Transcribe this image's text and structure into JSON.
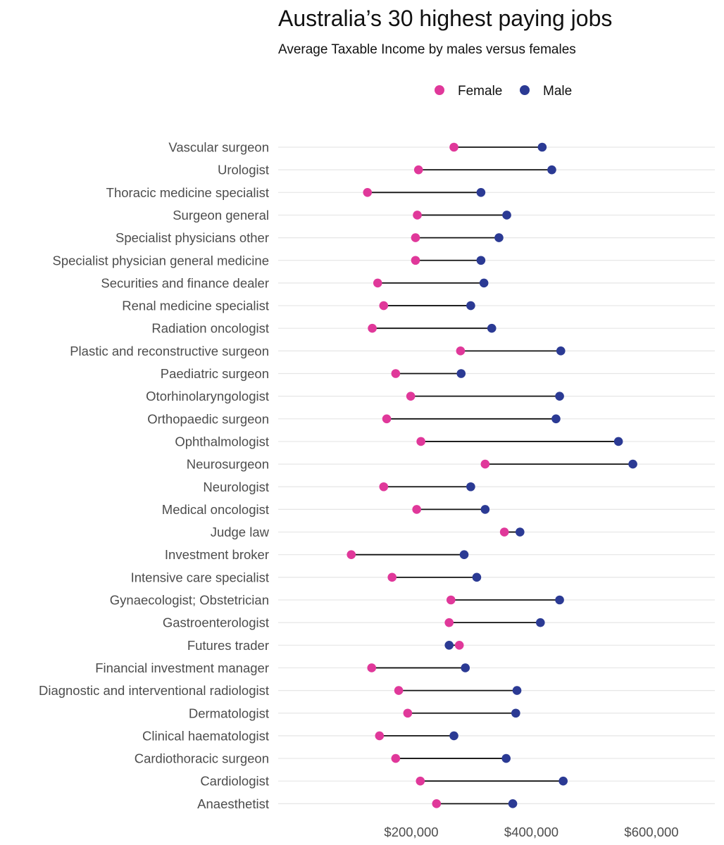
{
  "header": {
    "title": "Australia’s 30 highest paying jobs",
    "subtitle": "Average Taxable Income by males versus females"
  },
  "chart_data": {
    "type": "dumbbell",
    "title": "Australia’s 30 highest paying jobs",
    "subtitle": "Average Taxable Income by males versus females",
    "xlabel": "",
    "ylabel": "",
    "x_ticks": [
      200000,
      400000,
      600000
    ],
    "x_tick_labels": [
      "$200,000",
      "$400,000",
      "$600,000"
    ],
    "grid": "horizontal",
    "legend": {
      "position": "top",
      "entries": [
        "Female",
        "Male"
      ]
    },
    "colors": {
      "Female": "#e0389a",
      "Male": "#2b3a94",
      "segment": "#111111",
      "grid": "#e6e6e6"
    },
    "categories": [
      "Vascular surgeon",
      "Urologist",
      "Thoracic medicine specialist",
      "Surgeon  general",
      "Specialist physicians  other",
      "Specialist physician  general medicine",
      "Securities and finance dealer",
      "Renal medicine specialist",
      "Radiation oncologist",
      "Plastic and reconstructive surgeon",
      "Paediatric surgeon",
      "Otorhinolaryngologist",
      "Orthopaedic surgeon",
      "Ophthalmologist",
      "Neurosurgeon",
      "Neurologist",
      "Medical oncologist",
      "Judge  law",
      "Investment broker",
      "Intensive care specialist",
      "Gynaecologist; Obstetrician",
      "Gastroenterologist",
      "Futures trader",
      "Financial investment manager",
      "Diagnostic and interventional radiologist",
      "Dermatologist",
      "Clinical haematologist",
      "Cardiothoracic surgeon",
      "Cardiologist",
      "Anaesthetist"
    ],
    "series": [
      {
        "name": "Female",
        "values": [
          271000,
          212000,
          127000,
          210000,
          207000,
          207000,
          144000,
          154000,
          135000,
          282000,
          174000,
          199000,
          159000,
          216000,
          323000,
          154000,
          209000,
          355000,
          100000,
          168000,
          266000,
          263000,
          280000,
          134000,
          179000,
          194000,
          147000,
          174000,
          215000,
          242000
        ]
      },
      {
        "name": "Male",
        "values": [
          418000,
          434000,
          316000,
          359000,
          346000,
          316000,
          321000,
          299000,
          334000,
          449000,
          283000,
          447000,
          441000,
          545000,
          569000,
          299000,
          323000,
          381000,
          288000,
          309000,
          447000,
          415000,
          263000,
          290000,
          376000,
          374000,
          271000,
          358000,
          453000,
          369000
        ]
      }
    ]
  }
}
